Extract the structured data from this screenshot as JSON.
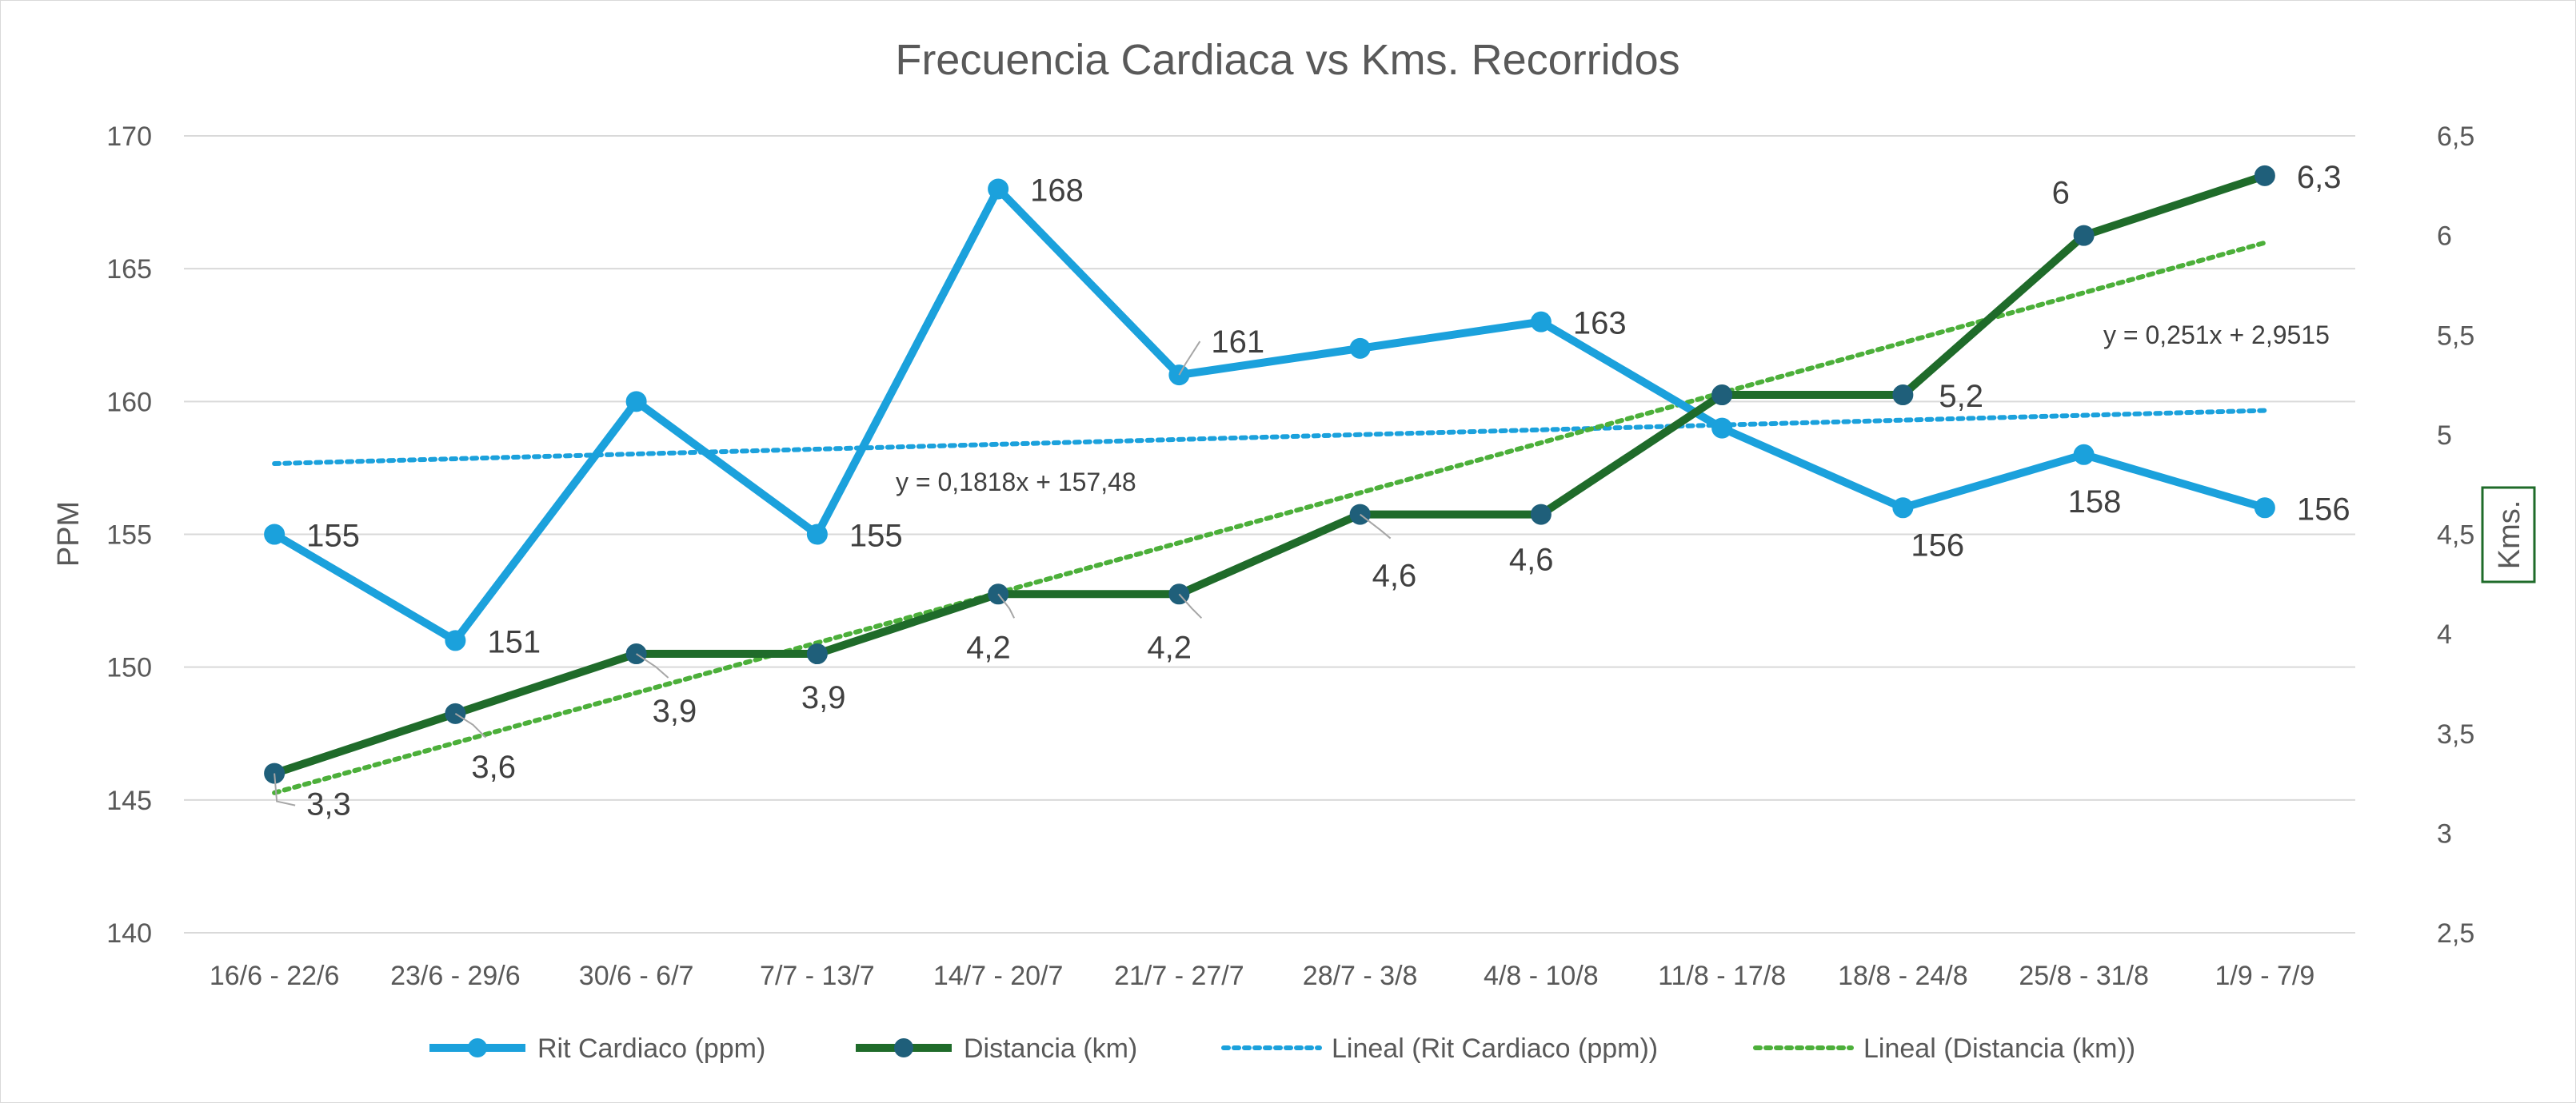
{
  "chart_data": {
    "type": "line",
    "title": "Frecuencia Cardiaca vs Kms. Recorridos",
    "categories": [
      "16/6 - 22/6",
      "23/6 - 29/6",
      "30/6 - 6/7",
      "7/7 - 13/7",
      "14/7 - 20/7",
      "21/7 - 27/7",
      "28/7 - 3/8",
      "4/8 - 10/8",
      "11/8 - 17/8",
      "18/8 - 24/8",
      "25/8 - 31/8",
      "1/9 - 7/9"
    ],
    "ylabel": "PPM",
    "y2label": "Kms.",
    "ylim": [
      140,
      170
    ],
    "y2lim": [
      2.5,
      6.5
    ],
    "yticks": [
      "140",
      "145",
      "150",
      "155",
      "160",
      "165",
      "170"
    ],
    "y2ticks": [
      "2,5",
      "3",
      "3,5",
      "4",
      "4,5",
      "5",
      "5,5",
      "6",
      "6,5"
    ],
    "grid": true,
    "legend_position": "bottom",
    "series": [
      {
        "name": "Rit Cardiaco (ppm)",
        "axis": "left",
        "color": "#1ba1dc",
        "values": [
          155,
          151,
          160,
          155,
          168,
          161,
          162,
          163,
          159,
          156,
          158,
          156
        ],
        "labels": [
          "155",
          "151",
          "",
          "155",
          "168",
          "161",
          "",
          "163",
          "",
          "156",
          "158",
          "156"
        ]
      },
      {
        "name": "Distancia (km)",
        "axis": "right",
        "color": "#1f6b2a",
        "marker_color": "#1f5f7a",
        "values": [
          3.3,
          3.6,
          3.9,
          3.9,
          4.2,
          4.2,
          4.6,
          4.6,
          5.2,
          5.2,
          6.0,
          6.3
        ],
        "labels": [
          "3,3",
          "3,6",
          "3,9",
          "3,9",
          "4,2",
          "4,2",
          "4,6",
          "4,6",
          "",
          "5,2",
          "6",
          "6,3"
        ]
      }
    ],
    "trendlines": [
      {
        "name": "Lineal (Rit Cardiaco (ppm))",
        "axis": "left",
        "color": "#1ba1dc",
        "slope": 0.1818,
        "intercept": 157.48,
        "equation": "y = 0,1818x + 157,48"
      },
      {
        "name": "Lineal (Distancia (km))",
        "axis": "right",
        "color": "#4caf3a",
        "slope": 0.251,
        "intercept": 2.9515,
        "equation": "y = 0,251x + 2,9515"
      }
    ]
  }
}
